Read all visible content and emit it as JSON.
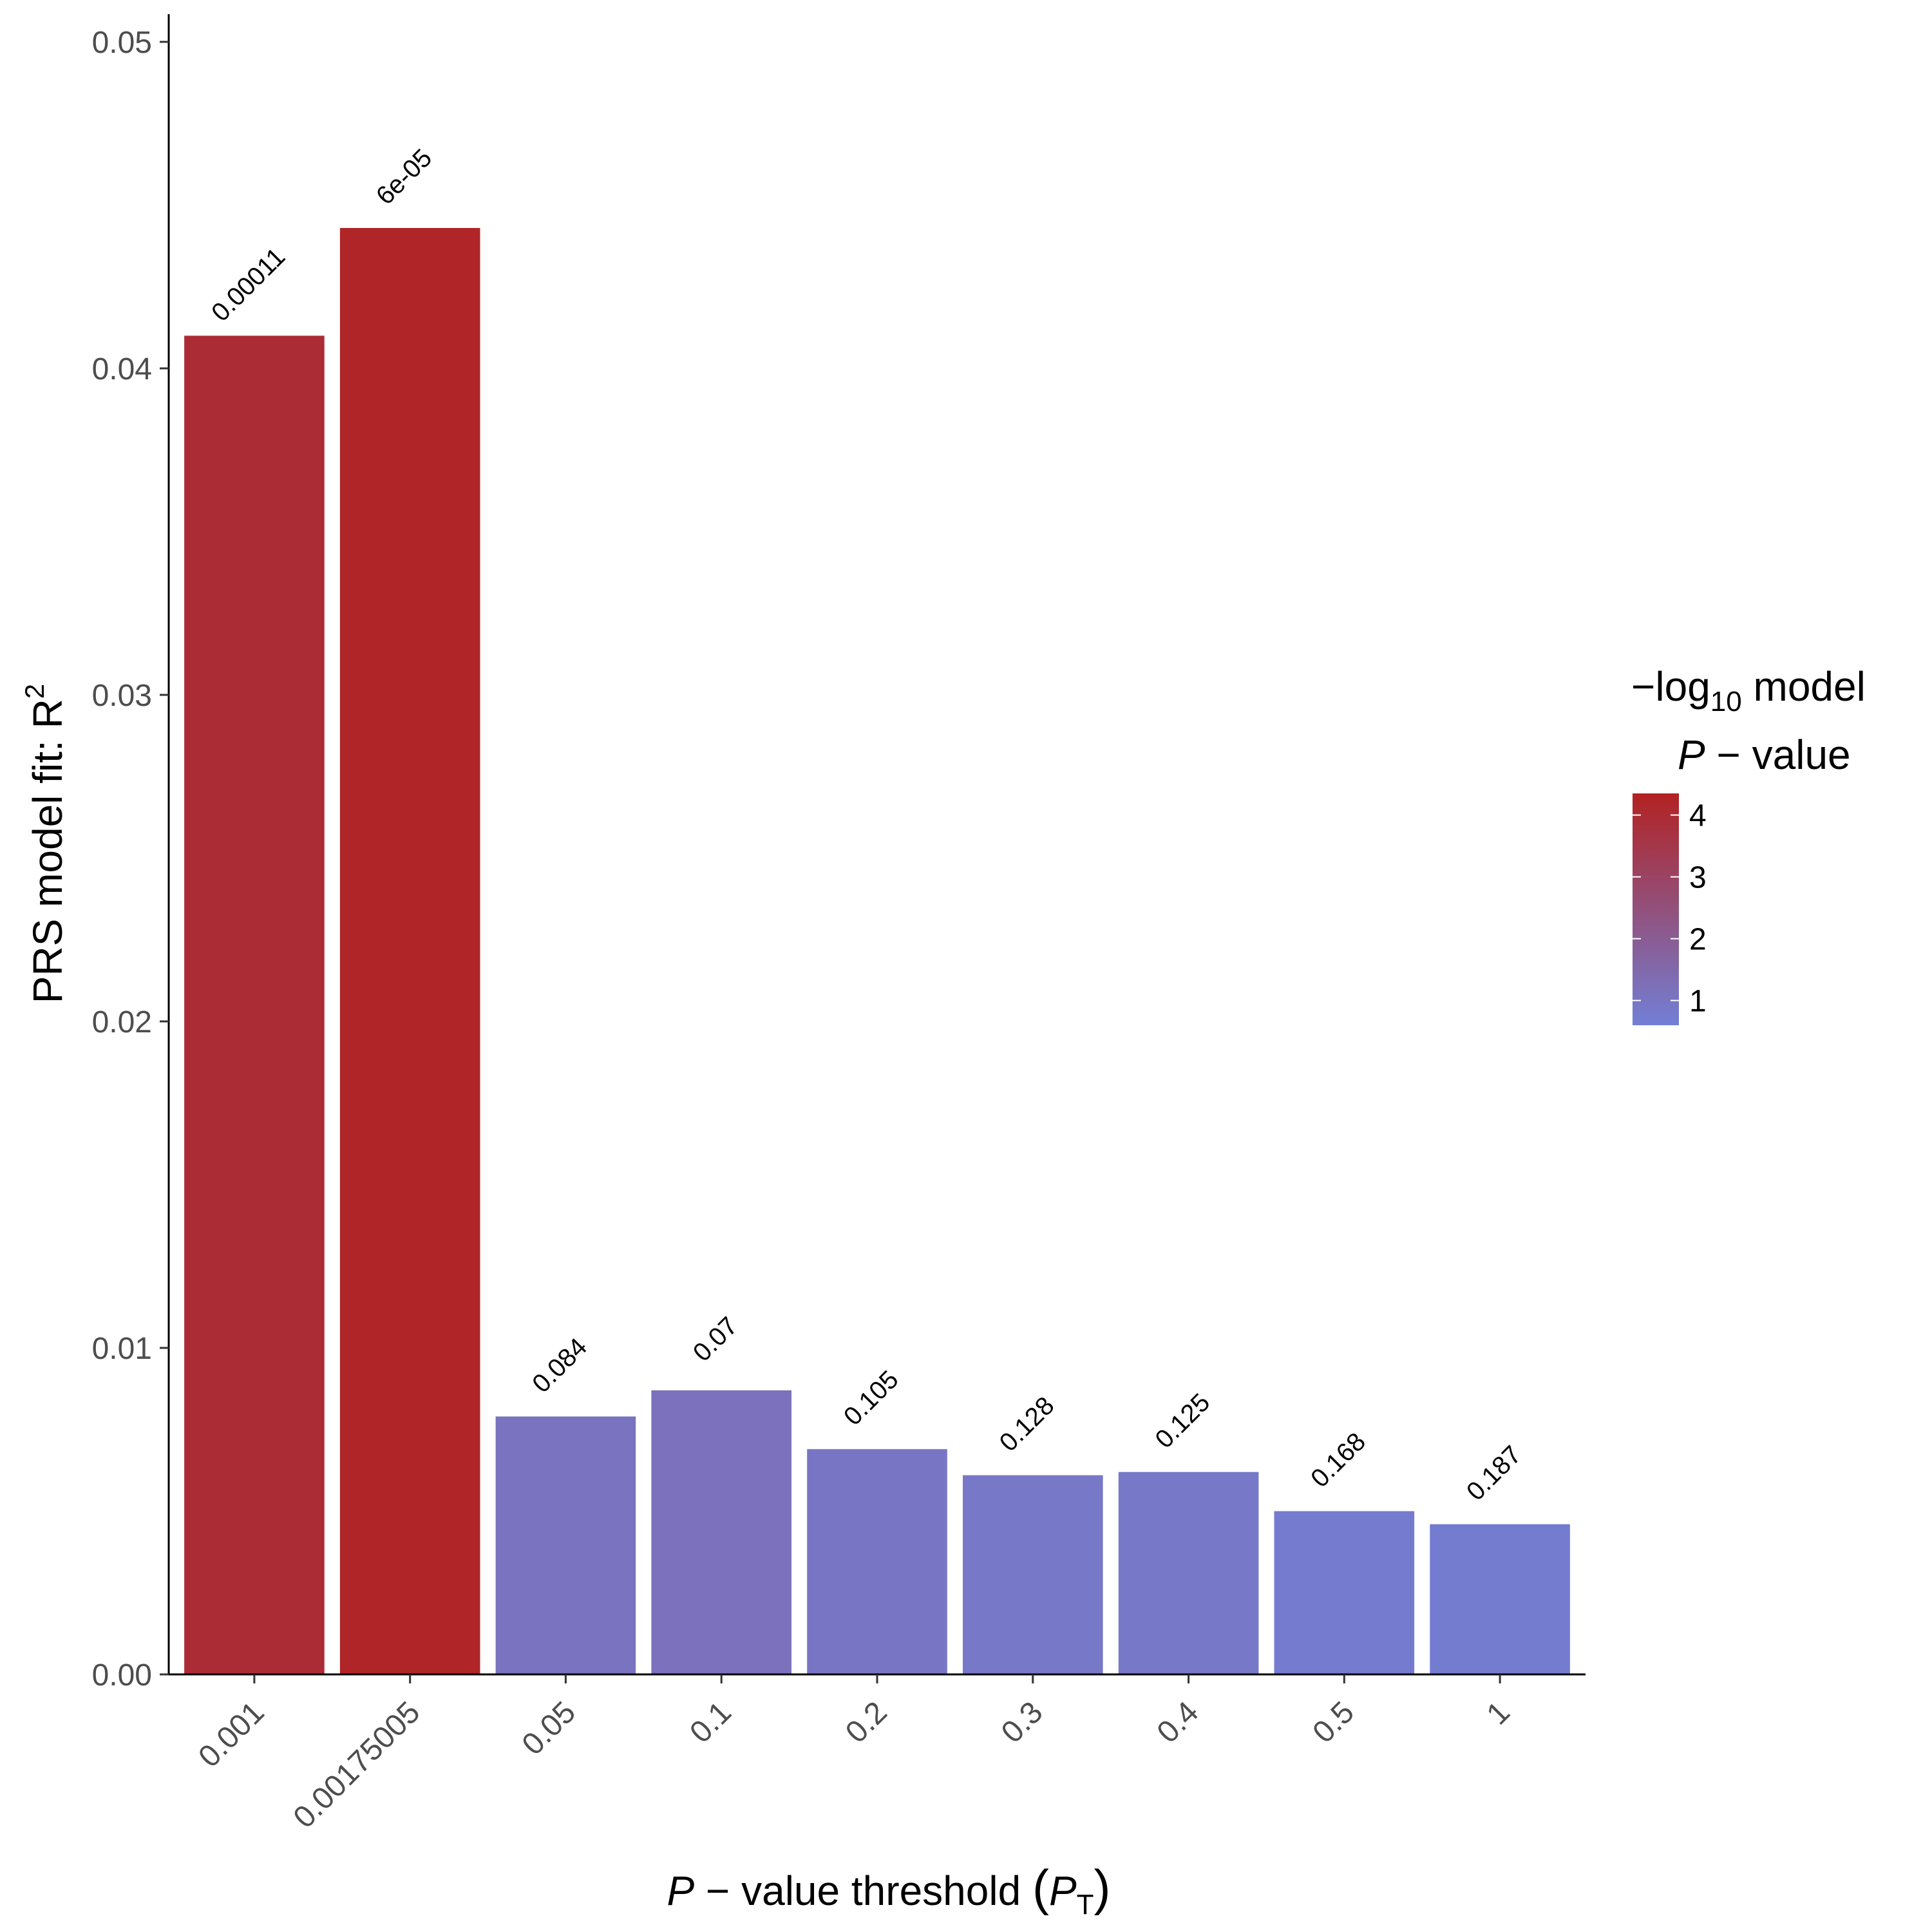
{
  "chart_data": {
    "type": "bar",
    "title": "",
    "xlabel": {
      "prefix": "P",
      "text": " − value threshold ",
      "symbol": "P",
      "subscript": "T"
    },
    "ylabel": {
      "text": "PRS model fit:  R",
      "superscript": "2"
    },
    "categories": [
      "0.001",
      "0.00175005",
      "0.05",
      "0.1",
      "0.2",
      "0.3",
      "0.4",
      "0.5",
      "1"
    ],
    "values": [
      0.041,
      0.0443,
      0.0079,
      0.0087,
      0.0069,
      0.0061,
      0.0062,
      0.005,
      0.0046
    ],
    "bar_labels": [
      "0.00011",
      "6e-05",
      "0.084",
      "0.07",
      "0.105",
      "0.128",
      "0.125",
      "0.168",
      "0.187"
    ],
    "color_values": [
      3.96,
      4.22,
      1.08,
      1.15,
      0.98,
      0.89,
      0.9,
      0.77,
      0.73
    ],
    "ylim": [
      0,
      0.051
    ],
    "yticks": [
      0.0,
      0.01,
      0.02,
      0.03,
      0.04,
      0.05
    ],
    "ytick_labels": [
      "0.00",
      "0.01",
      "0.02",
      "0.03",
      "0.04",
      "0.05"
    ],
    "grid": false,
    "legend": {
      "position": "right",
      "title_line1": {
        "prefix": "−log",
        "subscript": "10",
        "suffix": " model"
      },
      "title_line2": {
        "symbol": "P",
        "text": " − value"
      },
      "ticks": [
        1,
        2,
        3,
        4
      ],
      "tick_labels": [
        "1",
        "2",
        "3",
        "4"
      ],
      "range": [
        0.6,
        4.35
      ],
      "low_color": "#727fd6",
      "high_color": "#b22222"
    }
  }
}
